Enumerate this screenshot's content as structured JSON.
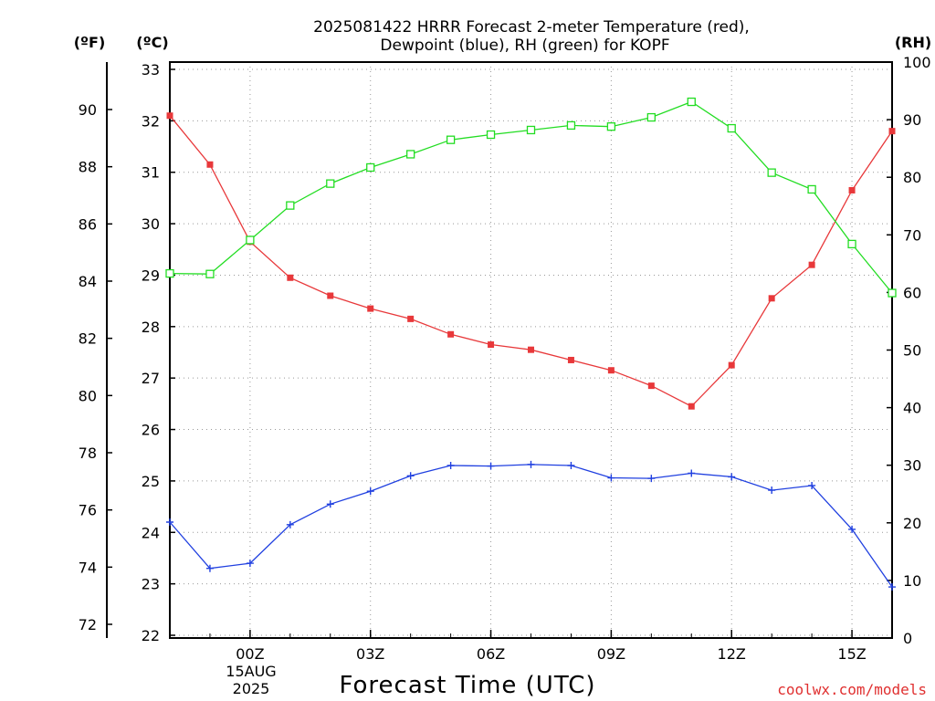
{
  "chart_data": {
    "type": "line",
    "title_lines": [
      "2025081422 HRRR Forecast 2-meter Temperature (red),",
      "Dewpoint (blue), RH (green) for KOPF"
    ],
    "xlabel": "Forecast Time (UTC)",
    "date_label_lines": [
      "15AUG",
      "2025"
    ],
    "credit": "coolwx.com/models",
    "units": {
      "fahrenheit": "(ºF)",
      "celsius": "(ºC)",
      "rh": "(RH)"
    },
    "hours": [
      22,
      23,
      24,
      25,
      26,
      27,
      28,
      29,
      30,
      31,
      32,
      33,
      34,
      35,
      36,
      37,
      38,
      39,
      40
    ],
    "xlim": [
      22,
      40
    ],
    "x_ticks": [
      {
        "hour": 24,
        "label": "00Z"
      },
      {
        "hour": 27,
        "label": "03Z"
      },
      {
        "hour": 30,
        "label": "06Z"
      },
      {
        "hour": 33,
        "label": "09Z"
      },
      {
        "hour": 36,
        "label": "12Z"
      },
      {
        "hour": 39,
        "label": "15Z"
      }
    ],
    "celsius_lim": [
      22,
      33
    ],
    "celsius_ticks": [
      "22",
      "23",
      "24",
      "25",
      "26",
      "27",
      "28",
      "29",
      "30",
      "31",
      "32",
      "33"
    ],
    "fahrenheit_ticks": [
      "72",
      "74",
      "76",
      "78",
      "80",
      "82",
      "84",
      "86",
      "88",
      "90"
    ],
    "rh_lim": [
      0,
      100
    ],
    "rh_ticks": [
      "0",
      "10",
      "20",
      "30",
      "40",
      "50",
      "60",
      "70",
      "80",
      "90",
      "100"
    ],
    "grid": true,
    "series": [
      {
        "name": "Temperature",
        "axis": "celsius",
        "color": "#e8383a",
        "marker": "filled-square",
        "values": [
          32.1,
          31.15,
          29.65,
          28.95,
          28.6,
          28.35,
          28.15,
          27.85,
          27.65,
          27.55,
          27.35,
          27.15,
          26.85,
          26.45,
          27.25,
          28.55,
          29.2,
          30.65,
          31.8
        ]
      },
      {
        "name": "Dewpoint",
        "axis": "celsius",
        "color": "#2040e0",
        "marker": "plus",
        "values": [
          24.2,
          23.3,
          23.4,
          24.15,
          24.55,
          24.8,
          25.1,
          25.3,
          25.29,
          25.32,
          25.3,
          25.06,
          25.05,
          25.15,
          25.08,
          24.82,
          24.91,
          24.06,
          22.94
        ]
      },
      {
        "name": "RH",
        "axis": "rh",
        "color": "#22dd22",
        "marker": "open-square",
        "values": [
          63.3,
          63.2,
          69.1,
          75.1,
          78.9,
          81.7,
          84.0,
          86.5,
          87.4,
          88.2,
          89.0,
          88.8,
          90.4,
          93.1,
          88.5,
          80.8,
          77.9,
          68.4,
          59.9
        ]
      }
    ]
  }
}
